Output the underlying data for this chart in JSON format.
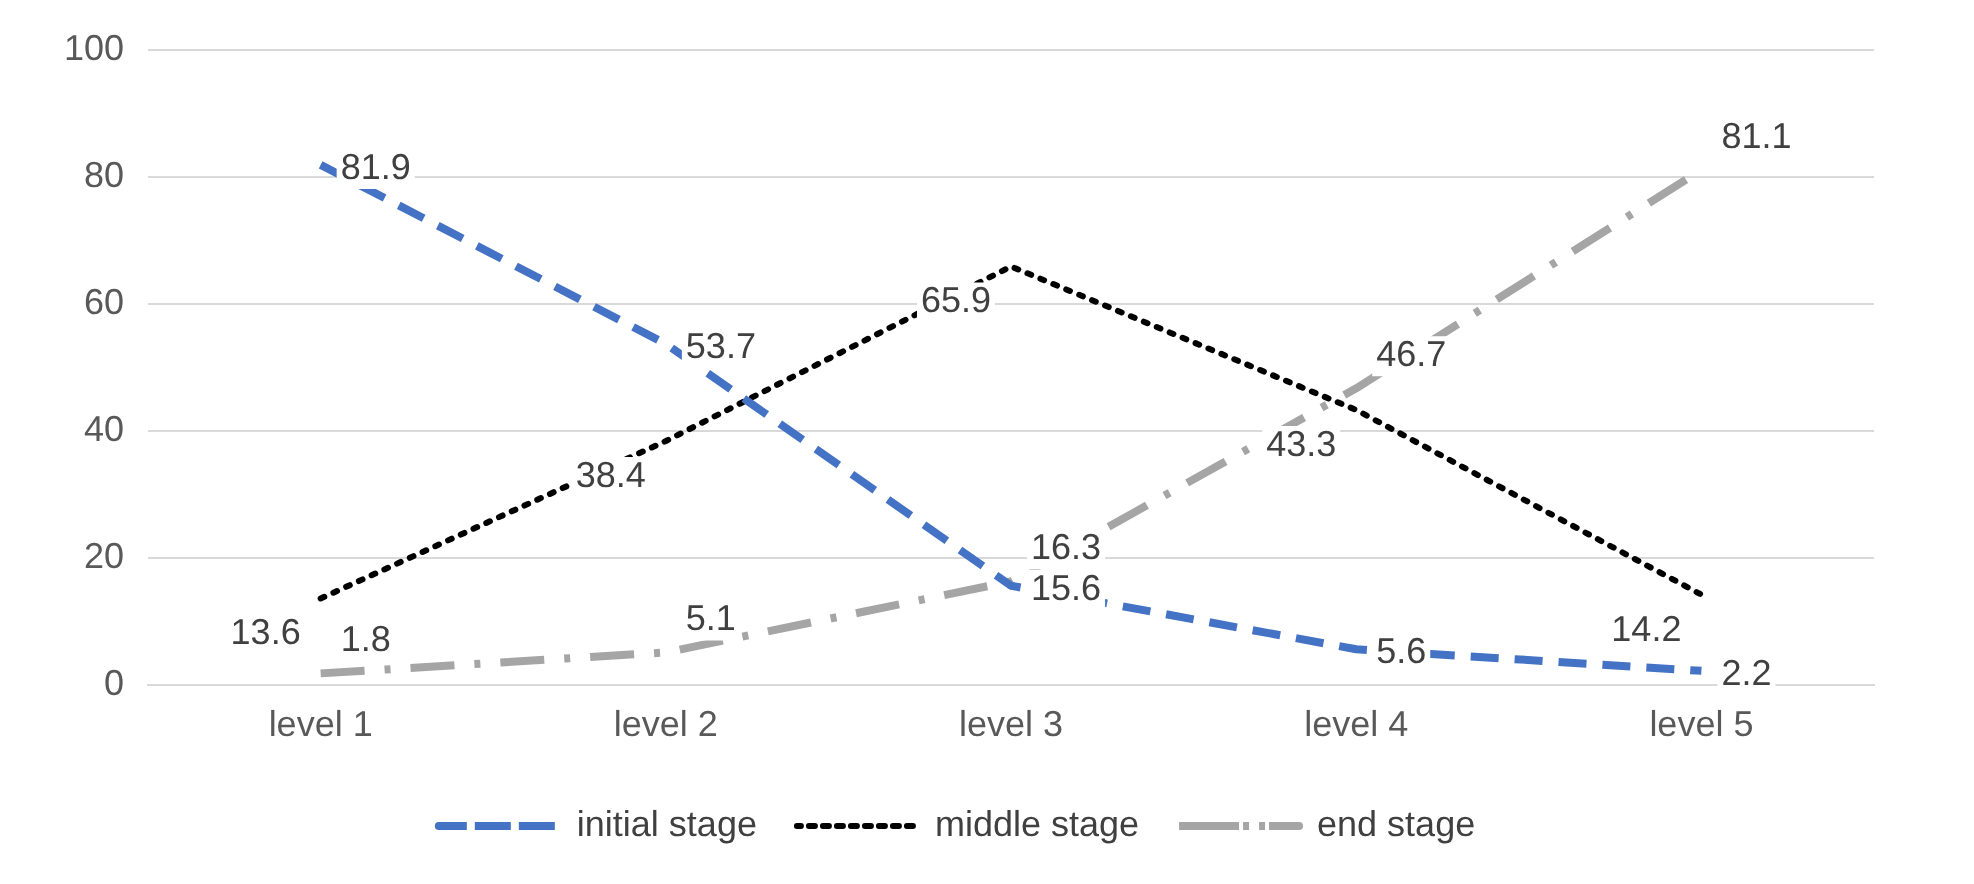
{
  "chart_data": {
    "type": "line",
    "categories": [
      "level 1",
      "level 2",
      "level 3",
      "level 4",
      "level 5"
    ],
    "series": [
      {
        "name": "initial stage",
        "color": "#4472c4",
        "line_style": "dashed",
        "values": [
          81.9,
          53.7,
          15.6,
          5.6,
          2.2
        ]
      },
      {
        "name": "middle stage",
        "color": "#000000",
        "line_style": "dotted",
        "values": [
          13.6,
          38.4,
          65.9,
          43.3,
          14.2
        ]
      },
      {
        "name": "end stage",
        "color": "#a5a5a5",
        "line_style": "dashdot",
        "values": [
          1.8,
          5.1,
          16.3,
          46.7,
          81.1
        ]
      }
    ],
    "ylim": [
      0,
      100
    ],
    "yticks": [
      0,
      20,
      40,
      60,
      80,
      100
    ],
    "grid": "y",
    "legend": "bottom",
    "marker": "none",
    "data_labels": true
  }
}
